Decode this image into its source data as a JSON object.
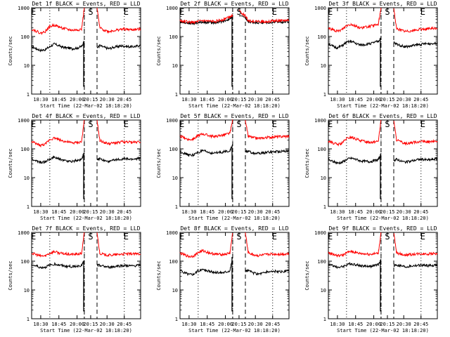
{
  "figure": {
    "panels": [
      {
        "title": "Det 1f BLACK = Events, RED = LLD",
        "y_label": "Counts/sec",
        "x_label": "Start Time (22-Mar-02 18:18:20)"
      },
      {
        "title": "Det 2f BLACK = Events, RED = LLD",
        "y_label": "Counts/sec",
        "x_label": "Start Time (22-Mar-02 18:18:20)"
      },
      {
        "title": "Det 3f BLACK = Events, RED = LLD",
        "y_label": "Counts/sec",
        "x_label": "Start Time (22-Mar-02 18:18:20)"
      },
      {
        "title": "Det 4f BLACK = Events, RED = LLD",
        "y_label": "Counts/sec",
        "x_label": "Start Time (22-Mar-02 18:18:20)"
      },
      {
        "title": "Det 5f BLACK = Events, RED = LLD",
        "y_label": "Counts/sec",
        "x_label": "Start Time (22-Mar-02 18:18:20)"
      },
      {
        "title": "Det 6f BLACK = Events, RED = LLD",
        "y_label": "Counts/sec",
        "x_label": "Start Time (22-Mar-02 18:18:20)"
      },
      {
        "title": "Det 7f BLACK = Events, RED = LLD",
        "y_label": "Counts/sec",
        "x_label": "Start Time (22-Mar-02 18:18:20)"
      },
      {
        "title": "Det 8f BLACK = Events, RED = LLD",
        "y_label": "Counts/sec",
        "x_label": "Start Time (22-Mar-02 18:18:20)"
      },
      {
        "title": "Det 9f BLACK = Events, RED = LLD",
        "y_label": "Counts/sec",
        "x_label": "Start Time (22-Mar-02 18:18:20)"
      }
    ]
  },
  "chart_data": [
    {
      "type": "line",
      "title": "Det 1f BLACK = Events, RED = LLD",
      "xlabel": "Start Time (22-Mar-02 18:18:20)",
      "ylabel": "Counts/sec",
      "y_scale": "log",
      "ylim": [
        1,
        1000
      ],
      "y_ticks": [
        "1",
        "10",
        "100",
        "1000"
      ],
      "x_ticks": [
        "18:30",
        "18:45",
        "20:00",
        "20:15",
        "20:30",
        "20:45"
      ],
      "markers": [
        "E",
        "S",
        "E"
      ],
      "gap_segment": [
        5.8,
        7.2
      ],
      "x": [
        0,
        0.5,
        1,
        1.5,
        2,
        2.5,
        3,
        3.5,
        4,
        4.5,
        5,
        5.5,
        5.8,
        7.2,
        7.5,
        8,
        8.5,
        9,
        9.5,
        10,
        10.5,
        11,
        11.5,
        12
      ],
      "series": [
        {
          "name": "Events",
          "color": "#000000",
          "values": [
            45,
            38,
            33,
            35,
            45,
            55,
            48,
            42,
            40,
            38,
            40,
            45,
            70,
            40,
            48,
            42,
            38,
            42,
            45,
            48,
            45,
            44,
            46,
            50
          ]
        },
        {
          "name": "LLD",
          "color": "#ff0000",
          "values": [
            180,
            155,
            130,
            150,
            220,
            250,
            215,
            190,
            175,
            165,
            170,
            180,
            1000,
            1000,
            200,
            165,
            150,
            160,
            170,
            180,
            175,
            172,
            175,
            180
          ]
        }
      ]
    },
    {
      "type": "line",
      "title": "Det 2f BLACK = Events, RED = LLD",
      "xlabel": "Start Time (22-Mar-02 18:18:20)",
      "ylabel": "Counts/sec",
      "y_scale": "log",
      "ylim": [
        1,
        1000
      ],
      "y_ticks": [
        "1",
        "10",
        "100",
        "1000"
      ],
      "x_ticks": [
        "18:30",
        "18:45",
        "20:00",
        "20:15",
        "20:30",
        "20:45"
      ],
      "markers": [
        "E",
        "S",
        "E"
      ],
      "gap_segment": [
        5.8,
        7.2
      ],
      "x": [
        0,
        0.5,
        1,
        1.5,
        2,
        2.5,
        3,
        3.5,
        4,
        4.5,
        5,
        5.5,
        5.8,
        6.5,
        7.2,
        7.5,
        8,
        8.5,
        9,
        9.5,
        10,
        10.5,
        11,
        11.5,
        12
      ],
      "series": [
        {
          "name": "Events",
          "color": "#000000",
          "values": [
            330,
            310,
            290,
            285,
            300,
            320,
            310,
            300,
            310,
            330,
            360,
            420,
            470,
            560,
            430,
            330,
            310,
            305,
            300,
            305,
            310,
            315,
            320,
            325,
            330
          ]
        },
        {
          "name": "LLD",
          "color": "#ff0000",
          "values": [
            360,
            335,
            315,
            310,
            330,
            350,
            340,
            330,
            345,
            370,
            420,
            500,
            560,
            760,
            520,
            360,
            340,
            335,
            330,
            335,
            340,
            350,
            355,
            360,
            365
          ]
        }
      ]
    },
    {
      "type": "line",
      "title": "Det 3f BLACK = Events, RED = LLD",
      "xlabel": "Start Time (22-Mar-02 18:18:20)",
      "ylabel": "Counts/sec",
      "y_scale": "log",
      "ylim": [
        1,
        1000
      ],
      "y_ticks": [
        "1",
        "10",
        "100",
        "1000"
      ],
      "x_ticks": [
        "18:30",
        "18:45",
        "20:00",
        "20:15",
        "20:30",
        "20:45"
      ],
      "markers": [
        "E",
        "S",
        "E"
      ],
      "gap_segment": [
        5.8,
        7.2
      ],
      "x": [
        0,
        0.5,
        1,
        1.5,
        2,
        2.5,
        3,
        3.5,
        4,
        4.5,
        5,
        5.5,
        5.8,
        7.2,
        7.5,
        8,
        8.5,
        9,
        9.5,
        10,
        10.5,
        11,
        11.5,
        12
      ],
      "series": [
        {
          "name": "Events",
          "color": "#000000",
          "values": [
            58,
            45,
            40,
            48,
            62,
            68,
            58,
            50,
            52,
            56,
            60,
            68,
            90,
            60,
            55,
            48,
            44,
            46,
            50,
            52,
            55,
            56,
            57,
            60
          ]
        },
        {
          "name": "LLD",
          "color": "#ff0000",
          "values": [
            200,
            170,
            150,
            175,
            240,
            270,
            230,
            200,
            210,
            225,
            240,
            260,
            1000,
            1000,
            190,
            165,
            150,
            155,
            165,
            175,
            180,
            185,
            190,
            195
          ]
        }
      ]
    },
    {
      "type": "line",
      "title": "Det 4f BLACK = Events, RED = LLD",
      "xlabel": "Start Time (22-Mar-02 18:18:20)",
      "ylabel": "Counts/sec",
      "y_scale": "log",
      "ylim": [
        1,
        1000
      ],
      "y_ticks": [
        "1",
        "10",
        "100",
        "1000"
      ],
      "x_ticks": [
        "18:30",
        "18:45",
        "20:00",
        "20:15",
        "20:30",
        "20:45"
      ],
      "markers": [
        "E",
        "S",
        "E"
      ],
      "gap_segment": [
        5.8,
        7.2
      ],
      "x": [
        0,
        0.5,
        1,
        1.5,
        2,
        2.5,
        3,
        3.5,
        4,
        4.5,
        5,
        5.5,
        5.8,
        7.2,
        7.5,
        8,
        8.5,
        9,
        9.5,
        10,
        10.5,
        11,
        11.5,
        12
      ],
      "series": [
        {
          "name": "Events",
          "color": "#000000",
          "values": [
            45,
            38,
            33,
            35,
            45,
            50,
            45,
            40,
            38,
            37,
            40,
            44,
            70,
            40,
            46,
            40,
            36,
            40,
            42,
            45,
            44,
            43,
            45,
            48
          ]
        },
        {
          "name": "LLD",
          "color": "#ff0000",
          "values": [
            175,
            150,
            130,
            145,
            210,
            240,
            210,
            185,
            170,
            160,
            165,
            175,
            1000,
            1000,
            195,
            165,
            150,
            158,
            165,
            175,
            172,
            170,
            172,
            178
          ]
        }
      ]
    },
    {
      "type": "line",
      "title": "Det 5f BLACK = Events, RED = LLD",
      "xlabel": "Start Time (22-Mar-02 18:18:20)",
      "ylabel": "Counts/sec",
      "y_scale": "log",
      "ylim": [
        1,
        1000
      ],
      "y_ticks": [
        "1",
        "10",
        "100",
        "1000"
      ],
      "x_ticks": [
        "18:30",
        "18:45",
        "20:00",
        "20:15",
        "20:30",
        "20:45"
      ],
      "markers": [
        "E",
        "S",
        "E"
      ],
      "gap_segment": [
        5.8,
        7.2
      ],
      "x": [
        0,
        0.5,
        1,
        1.5,
        2,
        2.5,
        3,
        3.5,
        4,
        4.5,
        5,
        5.5,
        5.8,
        7.2,
        7.5,
        8,
        8.5,
        9,
        9.5,
        10,
        10.5,
        11,
        11.5,
        12
      ],
      "series": [
        {
          "name": "Events",
          "color": "#000000",
          "values": [
            80,
            70,
            60,
            62,
            75,
            85,
            78,
            70,
            72,
            76,
            80,
            88,
            130,
            85,
            80,
            72,
            68,
            70,
            75,
            78,
            80,
            82,
            84,
            88
          ]
        },
        {
          "name": "LLD",
          "color": "#ff0000",
          "values": [
            270,
            240,
            210,
            220,
            290,
            330,
            300,
            270,
            275,
            290,
            310,
            350,
            1000,
            1000,
            280,
            245,
            230,
            235,
            245,
            255,
            260,
            265,
            270,
            275
          ]
        }
      ]
    },
    {
      "type": "line",
      "title": "Det 6f BLACK = Events, RED = LLD",
      "xlabel": "Start Time (22-Mar-02 18:18:20)",
      "ylabel": "Counts/sec",
      "y_scale": "log",
      "ylim": [
        1,
        1000
      ],
      "y_ticks": [
        "1",
        "10",
        "100",
        "1000"
      ],
      "x_ticks": [
        "18:30",
        "18:45",
        "20:00",
        "20:15",
        "20:30",
        "20:45"
      ],
      "markers": [
        "E",
        "S",
        "E"
      ],
      "gap_segment": [
        5.8,
        7.2
      ],
      "x": [
        0,
        0.5,
        1,
        1.5,
        2,
        2.5,
        3,
        3.5,
        4,
        4.5,
        5,
        5.5,
        5.8,
        7.2,
        7.5,
        8,
        8.5,
        9,
        9.5,
        10,
        10.5,
        11,
        11.5,
        12
      ],
      "series": [
        {
          "name": "Events",
          "color": "#000000",
          "values": [
            42,
            36,
            32,
            34,
            42,
            48,
            43,
            39,
            37,
            36,
            38,
            42,
            65,
            38,
            44,
            38,
            34,
            37,
            40,
            43,
            42,
            41,
            43,
            46
          ]
        },
        {
          "name": "LLD",
          "color": "#ff0000",
          "values": [
            185,
            160,
            140,
            155,
            225,
            255,
            220,
            195,
            180,
            170,
            175,
            185,
            1000,
            1000,
            205,
            170,
            155,
            162,
            170,
            180,
            178,
            176,
            178,
            184
          ]
        }
      ]
    },
    {
      "type": "line",
      "title": "Det 7f BLACK = Events, RED = LLD",
      "xlabel": "Start Time (22-Mar-02 18:18:20)",
      "ylabel": "Counts/sec",
      "y_scale": "log",
      "ylim": [
        1,
        1000
      ],
      "y_ticks": [
        "1",
        "10",
        "100",
        "1000"
      ],
      "x_ticks": [
        "18:30",
        "18:45",
        "20:00",
        "20:15",
        "20:30",
        "20:45"
      ],
      "markers": [
        "E",
        "S",
        "E"
      ],
      "gap_segment": [
        5.8,
        7.2
      ],
      "x": [
        0,
        0.5,
        1,
        1.5,
        2,
        2.5,
        3,
        3.5,
        4,
        4.5,
        5,
        5.5,
        5.8,
        7.2,
        7.5,
        8,
        8.5,
        9,
        9.5,
        10,
        10.5,
        11,
        11.5,
        12
      ],
      "series": [
        {
          "name": "Events",
          "color": "#000000",
          "values": [
            75,
            68,
            60,
            62,
            72,
            80,
            74,
            68,
            66,
            65,
            68,
            72,
            100,
            70,
            72,
            65,
            62,
            64,
            68,
            70,
            70,
            68,
            70,
            72
          ]
        },
        {
          "name": "LLD",
          "color": "#ff0000",
          "values": [
            190,
            170,
            150,
            155,
            190,
            215,
            195,
            180,
            175,
            170,
            175,
            185,
            1000,
            1000,
            190,
            170,
            160,
            165,
            170,
            178,
            178,
            176,
            178,
            182
          ]
        }
      ]
    },
    {
      "type": "line",
      "title": "Det 8f BLACK = Events, RED = LLD",
      "xlabel": "Start Time (22-Mar-02 18:18:20)",
      "ylabel": "Counts/sec",
      "y_scale": "log",
      "ylim": [
        1,
        1000
      ],
      "y_ticks": [
        "1",
        "10",
        "100",
        "1000"
      ],
      "x_ticks": [
        "18:30",
        "18:45",
        "20:00",
        "20:15",
        "20:30",
        "20:45"
      ],
      "markers": [
        "E",
        "S",
        "E"
      ],
      "gap_segment": [
        5.8,
        7.2
      ],
      "x": [
        0,
        0.5,
        1,
        1.5,
        2,
        2.5,
        3,
        3.5,
        4,
        4.5,
        5,
        5.5,
        5.8,
        7.2,
        7.5,
        8,
        8.5,
        9,
        9.5,
        10,
        10.5,
        11,
        11.5,
        12
      ],
      "series": [
        {
          "name": "Events",
          "color": "#000000",
          "values": [
            48,
            40,
            35,
            36,
            46,
            52,
            46,
            42,
            40,
            40,
            42,
            48,
            140,
            45,
            48,
            40,
            36,
            38,
            42,
            44,
            44,
            42,
            44,
            46
          ]
        },
        {
          "name": "LLD",
          "color": "#ff0000",
          "values": [
            190,
            165,
            145,
            150,
            200,
            230,
            205,
            185,
            175,
            170,
            175,
            190,
            1000,
            1000,
            200,
            170,
            155,
            160,
            168,
            178,
            176,
            174,
            176,
            182
          ]
        }
      ]
    },
    {
      "type": "line",
      "title": "Det 9f BLACK = Events, RED = LLD",
      "xlabel": "Start Time (22-Mar-02 18:18:20)",
      "ylabel": "Counts/sec",
      "y_scale": "log",
      "ylim": [
        1,
        1000
      ],
      "y_ticks": [
        "1",
        "10",
        "100",
        "1000"
      ],
      "x_ticks": [
        "18:30",
        "18:45",
        "20:00",
        "20:15",
        "20:30",
        "20:45"
      ],
      "markers": [
        "E",
        "S",
        "E"
      ],
      "gap_segment": [
        5.8,
        7.2
      ],
      "x": [
        0,
        0.5,
        1,
        1.5,
        2,
        2.5,
        3,
        3.5,
        4,
        4.5,
        5,
        5.5,
        5.8,
        7.2,
        7.5,
        8,
        8.5,
        9,
        9.5,
        10,
        10.5,
        11,
        11.5,
        12
      ],
      "series": [
        {
          "name": "Events",
          "color": "#000000",
          "values": [
            78,
            70,
            62,
            64,
            74,
            82,
            76,
            70,
            68,
            67,
            70,
            74,
            110,
            72,
            74,
            68,
            64,
            66,
            70,
            72,
            72,
            70,
            72,
            74
          ]
        },
        {
          "name": "LLD",
          "color": "#ff0000",
          "values": [
            195,
            175,
            155,
            160,
            195,
            220,
            200,
            185,
            180,
            175,
            180,
            190,
            1000,
            1000,
            195,
            175,
            165,
            170,
            175,
            182,
            182,
            180,
            182,
            186
          ]
        }
      ]
    }
  ]
}
